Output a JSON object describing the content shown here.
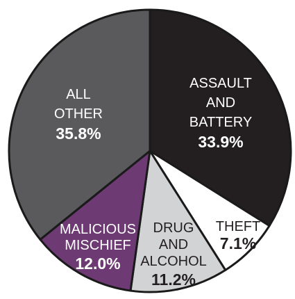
{
  "chart_data": {
    "type": "pie",
    "title": "",
    "start_angle_deg": 0,
    "direction": "clockwise",
    "slices": [
      {
        "key": "assault",
        "label_lines": [
          "ASSAULT",
          "AND",
          "BATTERY"
        ],
        "percent_text": "33.9%",
        "value": 33.9,
        "color": "#231f20",
        "text_color": "#ffffff"
      },
      {
        "key": "theft",
        "label_lines": [
          "THEFT"
        ],
        "percent_text": "7.1%",
        "value": 7.1,
        "color": "#ffffff",
        "text_color": "#231f20"
      },
      {
        "key": "drug",
        "label_lines": [
          "DRUG",
          "AND",
          "ALCOHOL"
        ],
        "percent_text": "11.2%",
        "value": 11.2,
        "color": "#d1d3d4",
        "text_color": "#231f20"
      },
      {
        "key": "malicious",
        "label_lines": [
          "MALICIOUS",
          "MISCHIEF"
        ],
        "percent_text": "12.0%",
        "value": 12.0,
        "color": "#6d3a73",
        "text_color": "#ffffff"
      },
      {
        "key": "allother",
        "label_lines": [
          "ALL",
          "OTHER"
        ],
        "percent_text": "35.8%",
        "value": 35.8,
        "color": "#5a5a5c",
        "text_color": "#ffffff"
      }
    ]
  }
}
